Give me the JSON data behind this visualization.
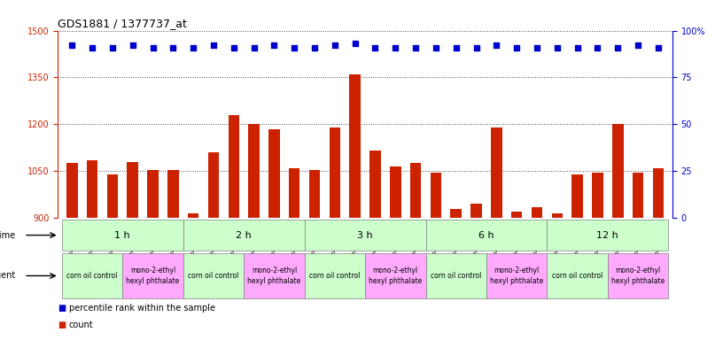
{
  "title": "GDS1881 / 1377737_at",
  "samples": [
    "GSM100955",
    "GSM100956",
    "GSM100957",
    "GSM100969",
    "GSM100970",
    "GSM100971",
    "GSM100958",
    "GSM100959",
    "GSM100972",
    "GSM100973",
    "GSM100974",
    "GSM100975",
    "GSM100960",
    "GSM100961",
    "GSM100962",
    "GSM100976",
    "GSM100977",
    "GSM100978",
    "GSM100963",
    "GSM100964",
    "GSM100965",
    "GSM100979",
    "GSM100980",
    "GSM100981",
    "GSM100951",
    "GSM100952",
    "GSM100953",
    "GSM100966",
    "GSM100967",
    "GSM100968"
  ],
  "counts": [
    1075,
    1085,
    1040,
    1078,
    1055,
    1055,
    915,
    1110,
    1230,
    1200,
    1185,
    1060,
    1055,
    1190,
    1360,
    1115,
    1065,
    1075,
    1045,
    930,
    945,
    1190,
    920,
    935,
    915,
    1040,
    1045,
    1200,
    1045,
    1060
  ],
  "percentiles": [
    92,
    91,
    91,
    92,
    91,
    91,
    91,
    92,
    91,
    91,
    92,
    91,
    91,
    92,
    93,
    91,
    91,
    91,
    91,
    91,
    91,
    92,
    91,
    91,
    91,
    91,
    91,
    91,
    92,
    91
  ],
  "ylim_left": [
    900,
    1500
  ],
  "ylim_right": [
    0,
    100
  ],
  "yticks_left": [
    900,
    1050,
    1200,
    1350,
    1500
  ],
  "yticks_right": [
    0,
    25,
    50,
    75,
    100
  ],
  "bar_color": "#cc2200",
  "dot_color": "#0000cc",
  "time_groups": [
    {
      "label": "1 h",
      "start": 0,
      "end": 6
    },
    {
      "label": "2 h",
      "start": 6,
      "end": 12
    },
    {
      "label": "3 h",
      "start": 12,
      "end": 18
    },
    {
      "label": "6 h",
      "start": 18,
      "end": 24
    },
    {
      "label": "12 h",
      "start": 24,
      "end": 30
    }
  ],
  "agent_groups": [
    {
      "label": "corn oil control",
      "start": 0,
      "end": 3,
      "color": "#ccffcc"
    },
    {
      "label": "mono-2-ethyl\nhexyl phthalate",
      "start": 3,
      "end": 6,
      "color": "#ffaaff"
    },
    {
      "label": "corn oil control",
      "start": 6,
      "end": 9,
      "color": "#ccffcc"
    },
    {
      "label": "mono-2-ethyl\nhexyl phthalate",
      "start": 9,
      "end": 12,
      "color": "#ffaaff"
    },
    {
      "label": "corn oil control",
      "start": 12,
      "end": 15,
      "color": "#ccffcc"
    },
    {
      "label": "mono-2-ethyl\nhexyl phthalate",
      "start": 15,
      "end": 18,
      "color": "#ffaaff"
    },
    {
      "label": "corn oil control",
      "start": 18,
      "end": 21,
      "color": "#ccffcc"
    },
    {
      "label": "mono-2-ethyl\nhexyl phthalate",
      "start": 21,
      "end": 24,
      "color": "#ffaaff"
    },
    {
      "label": "corn oil control",
      "start": 24,
      "end": 27,
      "color": "#ccffcc"
    },
    {
      "label": "mono-2-ethyl\nhexyl phthalate",
      "start": 27,
      "end": 30,
      "color": "#ffaaff"
    }
  ],
  "time_color": "#ccffcc",
  "background_color": "#ffffff",
  "legend_count_color": "#cc2200",
  "legend_percentile_color": "#0000cc"
}
